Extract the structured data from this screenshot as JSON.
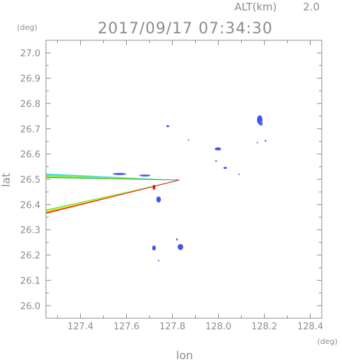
{
  "header": {
    "alt_label": "ALT(km)",
    "alt_value": "2.0",
    "timestamp": "2017/09/17 07:34:30"
  },
  "chart_data": {
    "type": "scatter",
    "xlabel": "lon",
    "ylabel": "lat",
    "x_unit": "(deg)",
    "y_unit": "(deg)",
    "xlim": [
      127.25,
      128.45
    ],
    "ylim": [
      25.95,
      27.05
    ],
    "x_ticks": [
      "127.4",
      "127.6",
      "127.8",
      "128.0",
      "128.2",
      "128.4"
    ],
    "x_tick_values": [
      127.4,
      127.6,
      127.8,
      128.0,
      128.2,
      128.4
    ],
    "y_ticks": [
      "26.0",
      "26.1",
      "26.2",
      "26.3",
      "26.4",
      "26.5",
      "26.6",
      "26.7",
      "26.8",
      "26.9",
      "27.0"
    ],
    "y_tick_values": [
      26.0,
      26.1,
      26.2,
      26.3,
      26.4,
      26.5,
      26.6,
      26.7,
      26.8,
      26.9,
      27.0
    ],
    "grid": false,
    "colors": {
      "axis": "#8c8c8c",
      "echo_blue": "#4455ee",
      "echo_cyan": "#44ddee",
      "echo_green": "#66ee44",
      "echo_yellow": "#eeee22",
      "echo_orange": "#ee7711",
      "echo_red": "#dd1111"
    },
    "beams": [
      {
        "name": "west",
        "apex": [
          127.83,
          26.497
        ],
        "far_top": [
          127.25,
          26.523
        ],
        "far_bottom": [
          127.25,
          26.507
        ],
        "colors": [
          "#44ddee",
          "#66ee44",
          "#99ee33"
        ]
      },
      {
        "name": "southwest",
        "apex": [
          127.83,
          26.497
        ],
        "far_top": [
          127.25,
          26.38
        ],
        "far_bottom": [
          127.25,
          26.365
        ],
        "colors": [
          "#66ee44",
          "#eeee22",
          "#ee7711"
        ]
      }
    ],
    "echoes": [
      {
        "lon": 128.18,
        "lat": 26.735,
        "rx": 0.012,
        "ry": 0.018,
        "color": "#4455ee"
      },
      {
        "lon": 128.185,
        "lat": 26.72,
        "rx": 0.008,
        "ry": 0.008,
        "color": "#4466ff"
      },
      {
        "lon": 127.78,
        "lat": 26.71,
        "rx": 0.006,
        "ry": 0.004,
        "color": "#4455ee"
      },
      {
        "lon": 127.998,
        "lat": 26.62,
        "rx": 0.014,
        "ry": 0.006,
        "color": "#4455ee"
      },
      {
        "lon": 128.03,
        "lat": 26.545,
        "rx": 0.008,
        "ry": 0.004,
        "color": "#4455ee"
      },
      {
        "lon": 128.205,
        "lat": 26.652,
        "rx": 0.004,
        "ry": 0.003,
        "color": "#4455ee"
      },
      {
        "lon": 127.57,
        "lat": 26.521,
        "rx": 0.03,
        "ry": 0.004,
        "color": "#4455ee"
      },
      {
        "lon": 127.68,
        "lat": 26.515,
        "rx": 0.025,
        "ry": 0.004,
        "color": "#4466ff"
      },
      {
        "lon": 127.72,
        "lat": 26.468,
        "rx": 0.006,
        "ry": 0.01,
        "color": "#dd1111"
      },
      {
        "lon": 127.74,
        "lat": 26.42,
        "rx": 0.01,
        "ry": 0.012,
        "color": "#4455ee"
      },
      {
        "lon": 127.72,
        "lat": 26.228,
        "rx": 0.008,
        "ry": 0.01,
        "color": "#4455ee"
      },
      {
        "lon": 127.835,
        "lat": 26.232,
        "rx": 0.012,
        "ry": 0.012,
        "color": "#4455ee"
      },
      {
        "lon": 127.82,
        "lat": 26.262,
        "rx": 0.003,
        "ry": 0.005,
        "color": "#4455ee"
      },
      {
        "lon": 127.99,
        "lat": 26.572,
        "rx": 0.004,
        "ry": 0.003,
        "color": "#4455ee"
      },
      {
        "lon": 127.87,
        "lat": 26.655,
        "rx": 0.003,
        "ry": 0.002,
        "color": "#4455ee"
      },
      {
        "lon": 127.74,
        "lat": 26.178,
        "rx": 0.003,
        "ry": 0.002,
        "color": "#4455ee"
      },
      {
        "lon": 128.09,
        "lat": 26.52,
        "rx": 0.003,
        "ry": 0.002,
        "color": "#4455ee"
      },
      {
        "lon": 128.17,
        "lat": 26.645,
        "rx": 0.003,
        "ry": 0.002,
        "color": "#4455ee"
      }
    ]
  }
}
